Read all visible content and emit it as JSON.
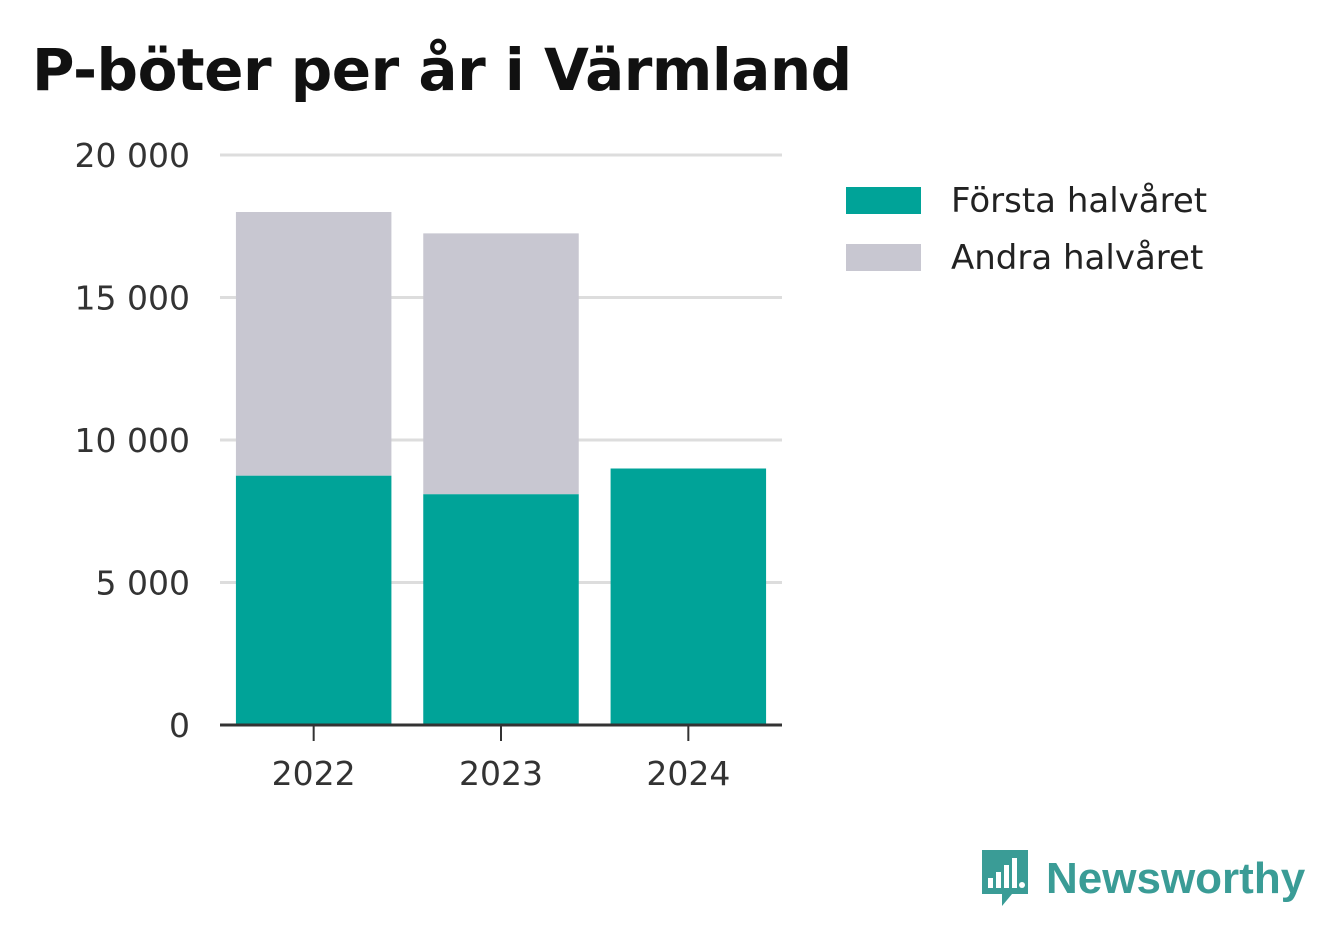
{
  "chart_data": {
    "type": "bar",
    "stacked": true,
    "title": "P-böter per år i Värmland",
    "categories": [
      "2022",
      "2023",
      "2024"
    ],
    "series": [
      {
        "name": "Första halvåret",
        "color": "#00a398",
        "values": [
          8750,
          8100,
          9000
        ]
      },
      {
        "name": "Andra halvåret",
        "color": "#c8c7d1",
        "values": [
          9250,
          9150,
          0
        ]
      }
    ],
    "ylim": [
      0,
      20000
    ],
    "yticks": [
      0,
      5000,
      10000,
      15000,
      20000
    ],
    "ytick_labels": [
      "0",
      "5 000",
      "10 000",
      "15 000",
      "20 000"
    ],
    "grid": true,
    "legend_position": "top-right"
  },
  "brand": {
    "name": "Newsworthy",
    "icon": "newsworthy-logo-icon",
    "color": "#3a9c96"
  }
}
